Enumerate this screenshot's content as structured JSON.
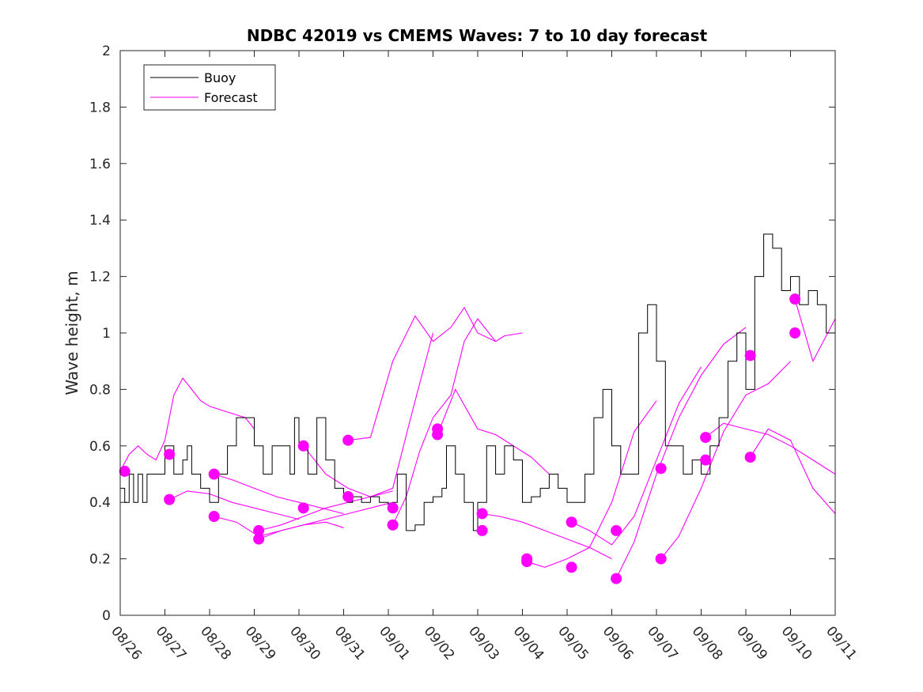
{
  "chart_data": {
    "type": "line",
    "title": "NDBC 42019 vs CMEMS Waves: 7 to 10 day forecast",
    "xlabel": "",
    "ylabel": "Wave height, m",
    "xlim": [
      0,
      16
    ],
    "ylim": [
      0,
      2
    ],
    "x_tick_labels": [
      "08/26",
      "08/27",
      "08/28",
      "08/29",
      "08/30",
      "08/31",
      "09/01",
      "09/02",
      "09/03",
      "09/04",
      "09/05",
      "09/06",
      "09/07",
      "09/08",
      "09/09",
      "09/10",
      "09/11"
    ],
    "y_tick_labels": [
      "0",
      "0.2",
      "0.4",
      "0.6",
      "0.8",
      "1",
      "1.2",
      "1.4",
      "1.6",
      "1.8",
      "2"
    ],
    "y_ticks": [
      0,
      0.2,
      0.4,
      0.6,
      0.8,
      1.0,
      1.2,
      1.4,
      1.6,
      1.8,
      2.0
    ],
    "legend": {
      "position": "top-left",
      "entries": [
        "Buoy",
        "Forecast"
      ]
    },
    "colors": {
      "buoy": "#000000",
      "forecast": "#ff00ff"
    },
    "series": [
      {
        "name": "Buoy",
        "x": [
          0,
          0.1,
          0.2,
          0.3,
          0.4,
          0.5,
          0.6,
          0.8,
          1.0,
          1.2,
          1.4,
          1.5,
          1.6,
          1.7,
          1.8,
          2.0,
          2.2,
          2.4,
          2.6,
          2.8,
          3.0,
          3.2,
          3.4,
          3.6,
          3.8,
          3.9,
          4.0,
          4.2,
          4.4,
          4.6,
          4.8,
          5.0,
          5.1,
          5.2,
          5.4,
          5.6,
          5.8,
          6.0,
          6.1,
          6.2,
          6.4,
          6.6,
          6.8,
          7.0,
          7.2,
          7.3,
          7.5,
          7.7,
          7.9,
          8.0,
          8.2,
          8.4,
          8.6,
          8.8,
          9.0,
          9.2,
          9.4,
          9.6,
          9.8,
          10.0,
          10.2,
          10.4,
          10.6,
          10.8,
          11.0,
          11.2,
          11.4,
          11.6,
          11.8,
          12.0,
          12.2,
          12.4,
          12.6,
          12.8,
          13.0,
          13.2,
          13.4,
          13.6,
          13.8,
          14.0,
          14.2,
          14.4,
          14.6,
          14.8,
          15.0,
          15.2,
          15.4,
          15.6,
          15.8,
          16.0
        ],
        "values": [
          0.45,
          0.4,
          0.5,
          0.4,
          0.5,
          0.4,
          0.5,
          0.5,
          0.6,
          0.5,
          0.55,
          0.6,
          0.5,
          0.5,
          0.45,
          0.4,
          0.5,
          0.6,
          0.7,
          0.7,
          0.6,
          0.5,
          0.6,
          0.6,
          0.5,
          0.7,
          0.6,
          0.5,
          0.7,
          0.55,
          0.45,
          0.42,
          0.4,
          0.42,
          0.4,
          0.42,
          0.4,
          0.38,
          0.4,
          0.5,
          0.3,
          0.32,
          0.4,
          0.42,
          0.45,
          0.6,
          0.5,
          0.4,
          0.3,
          0.4,
          0.6,
          0.5,
          0.6,
          0.55,
          0.4,
          0.42,
          0.45,
          0.5,
          0.45,
          0.4,
          0.4,
          0.5,
          0.7,
          0.8,
          0.6,
          0.5,
          0.5,
          1.0,
          1.1,
          0.9,
          0.6,
          0.6,
          0.5,
          0.55,
          0.5,
          0.6,
          0.7,
          0.9,
          1.0,
          0.8,
          1.2,
          1.35,
          1.3,
          1.15,
          1.2,
          1.1,
          1.15,
          1.1,
          1.0,
          0.8
        ]
      },
      {
        "name": "Forecast",
        "runs": [
          {
            "x": [
              0,
              0.2,
              0.4,
              0.6,
              0.8,
              1.0,
              1.2,
              1.4,
              1.6,
              1.8,
              2.0,
              2.4,
              2.8,
              3.0
            ],
            "values": [
              0.51,
              0.57,
              0.6,
              0.57,
              0.55,
              0.62,
              0.78,
              0.84,
              0.8,
              0.76,
              0.74,
              0.72,
              0.7,
              0.66
            ]
          },
          {
            "x": [
              1.1,
              1.5,
              2.0,
              2.5,
              3.0,
              3.5,
              4.0
            ],
            "values": [
              0.41,
              0.44,
              0.43,
              0.4,
              0.38,
              0.36,
              0.34
            ]
          },
          {
            "x": [
              2.1,
              2.5,
              3.0,
              3.5,
              4.0,
              4.5,
              5.0
            ],
            "values": [
              0.5,
              0.48,
              0.45,
              0.42,
              0.4,
              0.38,
              0.36
            ]
          },
          {
            "x": [
              2.1,
              2.6,
              3.1,
              3.6,
              4.1,
              4.6,
              5.0
            ],
            "values": [
              0.35,
              0.33,
              0.28,
              0.3,
              0.32,
              0.33,
              0.31
            ]
          },
          {
            "x": [
              3.1,
              3.6,
              4.1,
              4.6,
              5.1,
              5.6,
              6.1
            ],
            "values": [
              0.27,
              0.3,
              0.32,
              0.34,
              0.36,
              0.38,
              0.4
            ]
          },
          {
            "x": [
              3.1,
              3.6,
              4.1,
              4.6,
              5.1,
              5.6,
              6.1
            ],
            "values": [
              0.3,
              0.32,
              0.35,
              0.38,
              0.4,
              0.42,
              0.44
            ]
          },
          {
            "x": [
              4.1,
              4.6,
              5.1,
              5.6,
              6.1,
              6.5,
              7.0
            ],
            "values": [
              0.6,
              0.5,
              0.45,
              0.42,
              0.45,
              0.7,
              1.0
            ]
          },
          {
            "x": [
              5.1,
              5.6,
              6.1,
              6.6,
              7.0,
              7.4,
              7.7,
              8.0,
              8.4,
              8.6,
              9.0
            ],
            "values": [
              0.62,
              0.63,
              0.9,
              1.06,
              0.97,
              1.02,
              1.09,
              1.0,
              0.97,
              0.99,
              1.0
            ]
          },
          {
            "x": [
              6.1,
              6.4,
              6.7,
              7.0,
              7.4,
              7.7,
              8.0,
              8.4
            ],
            "values": [
              0.32,
              0.42,
              0.58,
              0.7,
              0.78,
              0.97,
              1.05,
              0.97
            ]
          },
          {
            "x": [
              7.1,
              7.5,
              8.0,
              8.4,
              8.8,
              9.2,
              9.6
            ],
            "values": [
              0.64,
              0.8,
              0.66,
              0.64,
              0.6,
              0.56,
              0.5
            ]
          },
          {
            "x": [
              8.1,
              8.5,
              9.0,
              9.5,
              10.0,
              10.5,
              11.0
            ],
            "values": [
              0.36,
              0.35,
              0.33,
              0.3,
              0.27,
              0.24,
              0.2
            ]
          },
          {
            "x": [
              9.1,
              9.5,
              10.0,
              10.5,
              11.0,
              11.5,
              12.0
            ],
            "values": [
              0.19,
              0.17,
              0.2,
              0.24,
              0.4,
              0.65,
              0.76
            ]
          },
          {
            "x": [
              10.1,
              10.5,
              11.0,
              11.5,
              12.0,
              12.5,
              13.0
            ],
            "values": [
              0.33,
              0.3,
              0.25,
              0.35,
              0.55,
              0.75,
              0.88
            ]
          },
          {
            "x": [
              11.1,
              11.5,
              12.0,
              12.5,
              13.0,
              13.5,
              14.0
            ],
            "values": [
              0.13,
              0.26,
              0.5,
              0.7,
              0.85,
              0.96,
              1.02
            ]
          },
          {
            "x": [
              12.1,
              12.5,
              13.0,
              13.5,
              14.0,
              14.5,
              15.0
            ],
            "values": [
              0.2,
              0.28,
              0.45,
              0.65,
              0.78,
              0.82,
              0.9
            ]
          },
          {
            "x": [
              13.1,
              13.5,
              14.0,
              14.5,
              15.0,
              15.5,
              16.0
            ],
            "values": [
              0.63,
              0.68,
              0.66,
              0.64,
              0.6,
              0.55,
              0.5
            ]
          },
          {
            "x": [
              14.1,
              14.5,
              15.0,
              15.5,
              16.0
            ],
            "values": [
              0.56,
              0.66,
              0.62,
              0.45,
              0.36
            ]
          },
          {
            "x": [
              15.1,
              15.5,
              16.0
            ],
            "values": [
              1.12,
              0.9,
              1.05
            ]
          }
        ],
        "markers": {
          "x": [
            0.1,
            1.1,
            1.1,
            2.1,
            2.1,
            3.1,
            3.1,
            4.1,
            4.1,
            5.1,
            5.1,
            6.1,
            6.1,
            7.1,
            7.1,
            8.1,
            8.1,
            9.1,
            9.1,
            10.1,
            10.1,
            11.1,
            11.1,
            12.1,
            12.1,
            13.1,
            13.1,
            14.1,
            14.1,
            15.1,
            15.1
          ],
          "values": [
            0.51,
            0.57,
            0.41,
            0.5,
            0.35,
            0.3,
            0.27,
            0.6,
            0.38,
            0.62,
            0.42,
            0.38,
            0.32,
            0.66,
            0.64,
            0.36,
            0.3,
            0.2,
            0.19,
            0.33,
            0.17,
            0.3,
            0.13,
            0.52,
            0.2,
            0.63,
            0.55,
            0.92,
            0.56,
            1.12,
            1.0
          ]
        }
      }
    ]
  }
}
